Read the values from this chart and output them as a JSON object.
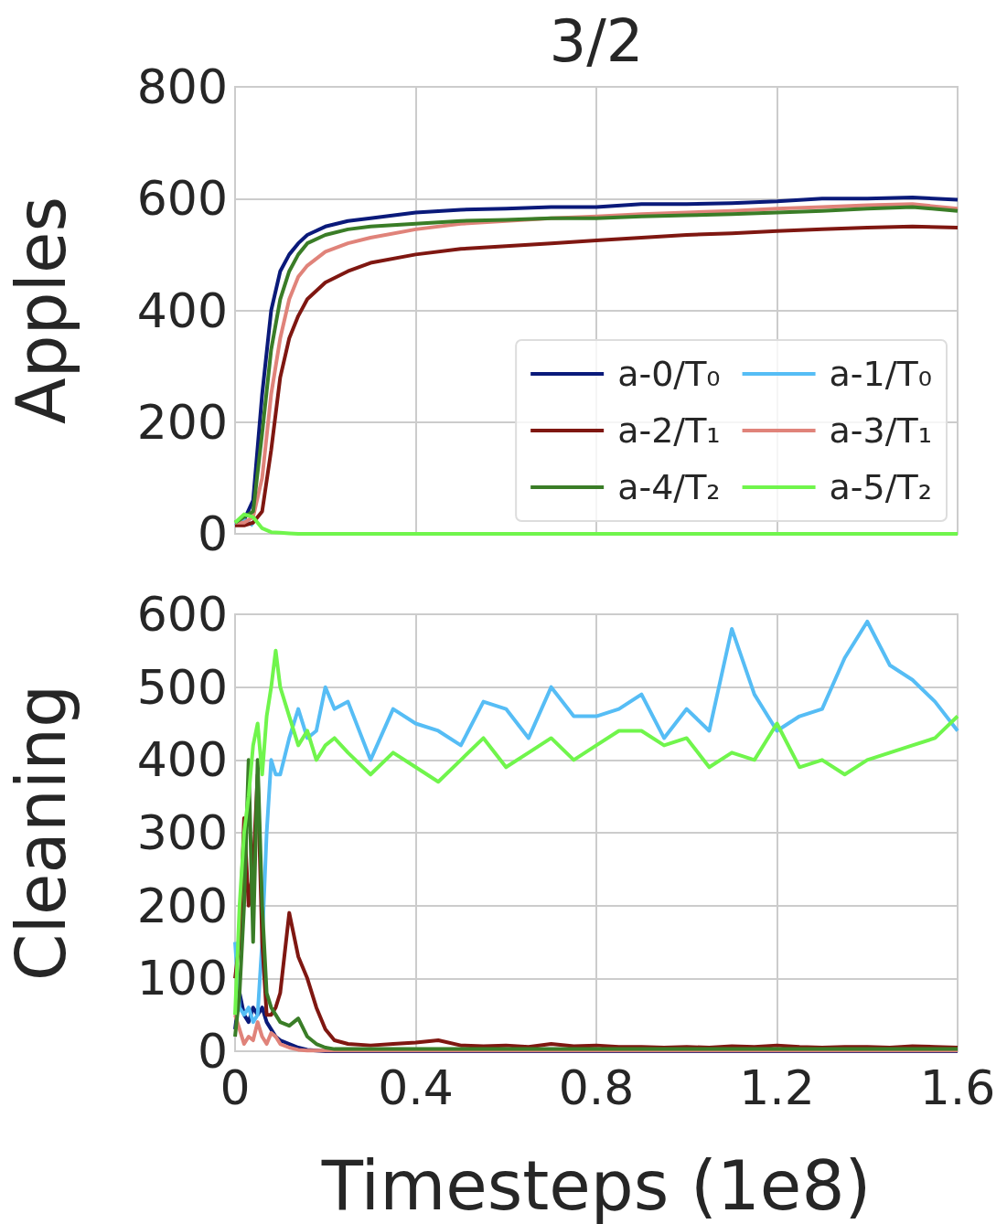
{
  "chart_data": [
    {
      "type": "line",
      "title": "3/2",
      "ylabel": "Apples",
      "x": [
        0,
        0.02,
        0.04,
        0.06,
        0.08,
        0.1,
        0.12,
        0.14,
        0.16,
        0.2,
        0.25,
        0.3,
        0.4,
        0.5,
        0.6,
        0.7,
        0.8,
        0.9,
        1.0,
        1.1,
        1.2,
        1.3,
        1.4,
        1.5,
        1.6
      ],
      "xlim": [
        0,
        1.6
      ],
      "xticks": [
        0,
        0.4,
        0.8,
        1.2,
        1.6
      ],
      "ylim": [
        0,
        800
      ],
      "yticks": [
        0,
        200,
        400,
        600,
        800
      ],
      "grid": true,
      "legend": "bottom right",
      "tick_labels": "y",
      "series": [
        {
          "name": "a-0/T₀",
          "color": "#0a1a7a",
          "values": [
            20,
            25,
            60,
            250,
            400,
            470,
            500,
            520,
            535,
            550,
            560,
            565,
            575,
            580,
            582,
            585,
            585,
            590,
            590,
            592,
            595,
            600,
            600,
            602,
            598
          ]
        },
        {
          "name": "a-1/T₀",
          "color": "#56bdf5",
          "values": [
            15,
            25,
            15,
            null,
            null,
            null,
            null,
            null,
            null,
            null,
            null,
            null,
            null,
            null,
            null,
            null,
            null,
            null,
            null,
            null,
            null,
            null,
            null,
            null,
            null
          ]
        },
        {
          "name": "a-2/T₁",
          "color": "#7f1711",
          "values": [
            15,
            15,
            20,
            40,
            150,
            280,
            350,
            390,
            420,
            450,
            470,
            485,
            500,
            510,
            515,
            520,
            525,
            530,
            535,
            538,
            542,
            545,
            548,
            550,
            548
          ]
        },
        {
          "name": "a-3/T₁",
          "color": "#e0837a",
          "values": [
            20,
            20,
            30,
            100,
            250,
            350,
            420,
            460,
            480,
            505,
            520,
            530,
            545,
            555,
            560,
            565,
            568,
            572,
            575,
            578,
            582,
            585,
            588,
            590,
            582
          ]
        },
        {
          "name": "a-4/T₂",
          "color": "#3a7d27",
          "values": [
            20,
            30,
            40,
            180,
            330,
            420,
            470,
            500,
            520,
            535,
            545,
            550,
            555,
            560,
            562,
            565,
            565,
            568,
            570,
            572,
            575,
            578,
            582,
            585,
            578
          ]
        },
        {
          "name": "a-5/T₂",
          "color": "#70f54c",
          "values": [
            20,
            35,
            30,
            10,
            3,
            2,
            1,
            0,
            0,
            0,
            0,
            0,
            0,
            0,
            0,
            0,
            0,
            0,
            0,
            0,
            0,
            0,
            0,
            0,
            0
          ]
        }
      ]
    },
    {
      "type": "line",
      "xlabel": "Timesteps (1e8)",
      "ylabel": "Cleaning",
      "x": [
        0,
        0.01,
        0.02,
        0.03,
        0.04,
        0.05,
        0.06,
        0.07,
        0.08,
        0.09,
        0.1,
        0.12,
        0.14,
        0.16,
        0.18,
        0.2,
        0.22,
        0.25,
        0.3,
        0.35,
        0.4,
        0.45,
        0.5,
        0.55,
        0.6,
        0.65,
        0.7,
        0.75,
        0.8,
        0.85,
        0.9,
        0.95,
        1.0,
        1.05,
        1.1,
        1.15,
        1.2,
        1.25,
        1.3,
        1.35,
        1.4,
        1.45,
        1.5,
        1.55,
        1.6
      ],
      "xlim": [
        0,
        1.6
      ],
      "xticks": [
        0,
        0.4,
        0.8,
        1.2,
        1.6
      ],
      "ylim": [
        0,
        600
      ],
      "yticks": [
        0,
        100,
        200,
        300,
        400,
        500,
        600
      ],
      "grid": true,
      "series": [
        {
          "color": "#0a1a7a",
          "values": [
            30,
            80,
            50,
            40,
            60,
            50,
            60,
            40,
            30,
            20,
            15,
            10,
            5,
            2,
            1,
            0,
            0,
            0,
            0,
            0,
            0,
            0,
            0,
            0,
            0,
            0,
            0,
            0,
            0,
            0,
            0,
            0,
            0,
            0,
            0,
            0,
            0,
            0,
            0,
            0,
            0,
            0,
            0,
            0,
            0
          ]
        },
        {
          "color": "#56bdf5",
          "values": [
            150,
            60,
            50,
            60,
            40,
            50,
            150,
            300,
            400,
            380,
            380,
            430,
            470,
            430,
            440,
            500,
            470,
            480,
            400,
            470,
            450,
            440,
            420,
            480,
            470,
            430,
            500,
            460,
            460,
            470,
            490,
            430,
            470,
            440,
            580,
            490,
            440,
            460,
            470,
            540,
            590,
            530,
            510,
            480,
            440
          ]
        },
        {
          "color": "#7f1711",
          "values": [
            100,
            150,
            320,
            200,
            250,
            380,
            150,
            50,
            50,
            60,
            80,
            190,
            130,
            100,
            60,
            30,
            15,
            10,
            8,
            10,
            12,
            15,
            8,
            7,
            8,
            6,
            10,
            7,
            8,
            6,
            6,
            5,
            6,
            5,
            7,
            6,
            8,
            6,
            5,
            6,
            6,
            5,
            7,
            6,
            5
          ]
        },
        {
          "color": "#e0837a",
          "values": [
            50,
            30,
            10,
            20,
            15,
            40,
            20,
            10,
            25,
            20,
            10,
            5,
            2,
            1,
            1,
            1,
            1,
            1,
            1,
            1,
            1,
            1,
            1,
            1,
            1,
            1,
            1,
            1,
            1,
            1,
            1,
            1,
            1,
            1,
            1,
            1,
            1,
            1,
            1,
            1,
            1,
            1,
            1,
            1,
            1
          ]
        },
        {
          "color": "#3a7d27",
          "values": [
            20,
            80,
            200,
            400,
            150,
            400,
            200,
            80,
            60,
            50,
            40,
            35,
            45,
            20,
            10,
            5,
            3,
            3,
            3,
            3,
            3,
            3,
            3,
            3,
            3,
            3,
            3,
            3,
            3,
            3,
            3,
            3,
            3,
            3,
            3,
            3,
            3,
            3,
            3,
            3,
            3,
            3,
            3,
            3,
            3
          ]
        },
        {
          "color": "#70f54c",
          "values": [
            50,
            200,
            300,
            350,
            420,
            450,
            380,
            460,
            500,
            550,
            500,
            460,
            420,
            440,
            400,
            420,
            430,
            410,
            380,
            410,
            390,
            370,
            400,
            430,
            390,
            410,
            430,
            400,
            420,
            440,
            440,
            420,
            430,
            390,
            410,
            400,
            450,
            390,
            400,
            380,
            400,
            410,
            420,
            430,
            460
          ]
        }
      ]
    }
  ]
}
